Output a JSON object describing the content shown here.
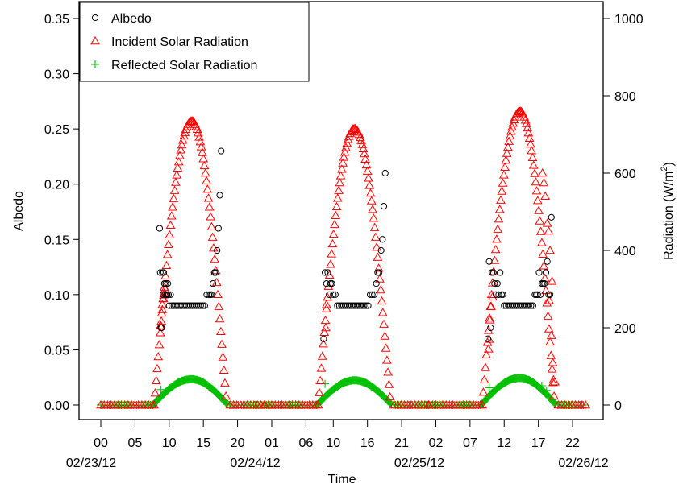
{
  "chart_data": {
    "type": "scatter",
    "xlabel": "Time",
    "ylabel_left": "Albedo",
    "ylabel_right": "Radiation (W/m²)",
    "ylabel_right_parts": {
      "main": "Radiation (W",
      "slash": "/",
      "m": "m",
      "sup": "2",
      "close": ")"
    },
    "y_left_lim": [
      0,
      0.35
    ],
    "y_right_lim": [
      0,
      1000
    ],
    "x_hour_range": [
      0,
      71
    ],
    "left_ticks": [
      "0.00",
      "0.05",
      "0.10",
      "0.15",
      "0.20",
      "0.25",
      "0.30",
      "0.35"
    ],
    "right_ticks": [
      "0",
      "200",
      "400",
      "600",
      "800",
      "1000"
    ],
    "x_hour_ticks": [
      {
        "hour": 0,
        "label": "00"
      },
      {
        "hour": 5,
        "label": "05"
      },
      {
        "hour": 10,
        "label": "10"
      },
      {
        "hour": 15,
        "label": "15"
      },
      {
        "hour": 20,
        "label": "20"
      },
      {
        "hour": 25,
        "label": "01"
      },
      {
        "hour": 30,
        "label": "06"
      },
      {
        "hour": 34,
        "label": "10"
      },
      {
        "hour": 39,
        "label": "16"
      },
      {
        "hour": 44,
        "label": "21"
      },
      {
        "hour": 49,
        "label": "02"
      },
      {
        "hour": 54,
        "label": "07"
      },
      {
        "hour": 59,
        "label": "12"
      },
      {
        "hour": 64,
        "label": "17"
      },
      {
        "hour": 69,
        "label": "22"
      }
    ],
    "x_date_labels": [
      {
        "hour": 0,
        "label": "02/23/12"
      },
      {
        "hour": 24,
        "label": "02/24/12"
      },
      {
        "hour": 48,
        "label": "02/25/12"
      },
      {
        "hour": 72,
        "label": "02/26/12"
      }
    ],
    "legend": {
      "position": "top-left",
      "entries": [
        {
          "name": "Albedo",
          "symbol": "circle",
          "color": "#000000"
        },
        {
          "name": "Incident Solar Radiation",
          "symbol": "triangle",
          "color": "#ff0000"
        },
        {
          "name": "Reflected Solar Radiation",
          "symbol": "plus",
          "color": "#00c000"
        }
      ]
    },
    "grid": false,
    "series": [
      {
        "name": "Albedo",
        "axis": "left",
        "symbol": "circle",
        "color": "#000000",
        "points": [
          [
            8.6,
            0.16
          ],
          [
            8.7,
            0.12
          ],
          [
            8.8,
            0.07
          ],
          [
            8.9,
            0.07
          ],
          [
            9.0,
            0.12
          ],
          [
            9.1,
            0.1
          ],
          [
            9.2,
            0.12
          ],
          [
            9.3,
            0.11
          ],
          [
            9.4,
            0.1
          ],
          [
            9.5,
            0.11
          ],
          [
            9.6,
            0.1
          ],
          [
            9.7,
            0.1
          ],
          [
            9.8,
            0.11
          ],
          [
            9.9,
            0.1
          ],
          [
            10.0,
            0.09
          ],
          [
            10.2,
            0.1
          ],
          [
            10.4,
            0.09
          ],
          [
            10.7,
            0.09
          ],
          [
            11.0,
            0.09
          ],
          [
            11.3,
            0.09
          ],
          [
            11.6,
            0.09
          ],
          [
            11.9,
            0.09
          ],
          [
            12.2,
            0.09
          ],
          [
            12.5,
            0.09
          ],
          [
            12.8,
            0.09
          ],
          [
            13.1,
            0.09
          ],
          [
            13.4,
            0.09
          ],
          [
            13.7,
            0.09
          ],
          [
            14.0,
            0.09
          ],
          [
            14.3,
            0.09
          ],
          [
            14.6,
            0.09
          ],
          [
            14.9,
            0.09
          ],
          [
            15.2,
            0.09
          ],
          [
            15.5,
            0.1
          ],
          [
            15.8,
            0.1
          ],
          [
            16.0,
            0.1
          ],
          [
            16.2,
            0.1
          ],
          [
            16.4,
            0.11
          ],
          [
            16.6,
            0.12
          ],
          [
            16.8,
            0.12
          ],
          [
            17.0,
            0.14
          ],
          [
            17.2,
            0.16
          ],
          [
            17.4,
            0.19
          ],
          [
            17.6,
            0.23
          ],
          [
            32.6,
            0.06
          ],
          [
            32.8,
            0.12
          ],
          [
            33.0,
            0.11
          ],
          [
            33.2,
            0.12
          ],
          [
            33.4,
            0.1
          ],
          [
            33.6,
            0.11
          ],
          [
            33.8,
            0.11
          ],
          [
            34.0,
            0.1
          ],
          [
            34.3,
            0.1
          ],
          [
            34.6,
            0.09
          ],
          [
            34.9,
            0.09
          ],
          [
            35.2,
            0.09
          ],
          [
            35.5,
            0.09
          ],
          [
            35.8,
            0.09
          ],
          [
            36.1,
            0.09
          ],
          [
            36.4,
            0.09
          ],
          [
            36.7,
            0.09
          ],
          [
            37.0,
            0.09
          ],
          [
            37.3,
            0.09
          ],
          [
            37.6,
            0.09
          ],
          [
            37.9,
            0.09
          ],
          [
            38.2,
            0.09
          ],
          [
            38.5,
            0.09
          ],
          [
            38.8,
            0.09
          ],
          [
            39.1,
            0.09
          ],
          [
            39.4,
            0.1
          ],
          [
            39.7,
            0.1
          ],
          [
            40.0,
            0.1
          ],
          [
            40.3,
            0.11
          ],
          [
            40.5,
            0.12
          ],
          [
            40.7,
            0.12
          ],
          [
            41.0,
            0.14
          ],
          [
            41.2,
            0.15
          ],
          [
            41.4,
            0.18
          ],
          [
            41.6,
            0.21
          ],
          [
            56.6,
            0.06
          ],
          [
            56.8,
            0.13
          ],
          [
            57.0,
            0.07
          ],
          [
            57.2,
            0.12
          ],
          [
            57.4,
            0.12
          ],
          [
            57.6,
            0.11
          ],
          [
            57.8,
            0.1
          ],
          [
            58.0,
            0.11
          ],
          [
            58.2,
            0.1
          ],
          [
            58.4,
            0.12
          ],
          [
            58.6,
            0.1
          ],
          [
            58.8,
            0.1
          ],
          [
            59.0,
            0.09
          ],
          [
            59.3,
            0.09
          ],
          [
            59.6,
            0.09
          ],
          [
            59.9,
            0.09
          ],
          [
            60.2,
            0.09
          ],
          [
            60.5,
            0.09
          ],
          [
            60.8,
            0.09
          ],
          [
            61.1,
            0.09
          ],
          [
            61.4,
            0.09
          ],
          [
            61.7,
            0.09
          ],
          [
            62.0,
            0.09
          ],
          [
            62.3,
            0.09
          ],
          [
            62.6,
            0.09
          ],
          [
            62.9,
            0.09
          ],
          [
            63.2,
            0.09
          ],
          [
            63.5,
            0.1
          ],
          [
            63.7,
            0.1
          ],
          [
            63.9,
            0.1
          ],
          [
            64.1,
            0.12
          ],
          [
            64.3,
            0.1
          ],
          [
            64.5,
            0.11
          ],
          [
            64.7,
            0.11
          ],
          [
            64.9,
            0.11
          ],
          [
            65.1,
            0.12
          ],
          [
            65.3,
            0.13
          ],
          [
            65.5,
            0.1
          ],
          [
            65.7,
            0.1
          ],
          [
            65.9,
            0.17
          ]
        ]
      },
      {
        "name": "Incident Solar Radiation",
        "axis": "right",
        "symbol": "triangle",
        "color": "#ff0000",
        "generator": "diurnal",
        "days": [
          {
            "start": 7.8,
            "end": 18.4,
            "peak": 13.3,
            "max": 735,
            "night_to": 24
          },
          {
            "start": 31.8,
            "end": 42.4,
            "peak": 37.1,
            "max": 715,
            "night_to": 48
          },
          {
            "start": 55.8,
            "end": 66.4,
            "peak": 61.3,
            "max": 760,
            "night_to": 71
          }
        ],
        "night_step": 0.5,
        "day_step": 0.15,
        "extra_points": [
          [
            8.7,
            205
          ],
          [
            8.8,
            205
          ],
          [
            8.9,
            238
          ],
          [
            9.0,
            260
          ],
          [
            9.1,
            275
          ],
          [
            9.2,
            285
          ],
          [
            9.3,
            290
          ],
          [
            9.4,
            300
          ],
          [
            32.9,
            200
          ],
          [
            33.0,
            260
          ],
          [
            56.7,
            145
          ],
          [
            56.8,
            170
          ],
          [
            56.9,
            220
          ],
          [
            57.1,
            255
          ],
          [
            57.3,
            280
          ],
          [
            64.6,
            600
          ],
          [
            64.8,
            575
          ],
          [
            65.0,
            540
          ],
          [
            65.3,
            470
          ],
          [
            65.5,
            450
          ],
          [
            65.7,
            400
          ],
          [
            66.0,
            320
          ],
          [
            65.6,
            270
          ],
          [
            65.9,
            180
          ],
          [
            66.1,
            110
          ],
          [
            66.2,
            65
          ],
          [
            66.4,
            60
          ]
        ]
      },
      {
        "name": "Reflected Solar Radiation",
        "axis": "right",
        "symbol": "plus",
        "color": "#00c000",
        "generator": "diurnal",
        "days": [
          {
            "start": 7.6,
            "end": 18.6,
            "peak": 13.2,
            "max": 67,
            "night_to": 24
          },
          {
            "start": 31.6,
            "end": 42.6,
            "peak": 37.1,
            "max": 64,
            "night_to": 48
          },
          {
            "start": 55.6,
            "end": 66.6,
            "peak": 61.2,
            "max": 70,
            "night_to": 71
          }
        ],
        "night_step": 0.25,
        "day_step": 0.12,
        "extra_points": [
          [
            8.8,
            40
          ],
          [
            32.8,
            55
          ],
          [
            56.8,
            45
          ],
          [
            64.5,
            50
          ],
          [
            65.2,
            38
          ]
        ]
      }
    ]
  }
}
